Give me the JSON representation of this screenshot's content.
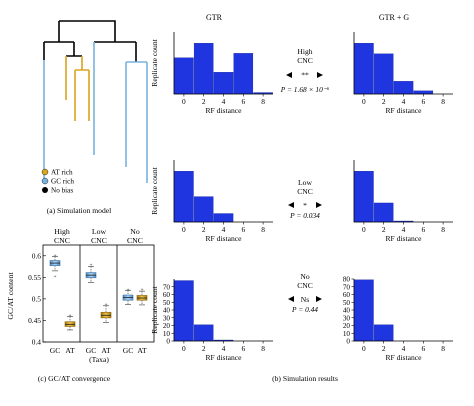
{
  "panels": {
    "a": {
      "caption": "(a) Simulation model",
      "legend": [
        {
          "label": "AT rich",
          "color": "#d9a520"
        },
        {
          "label": "GC rich",
          "color": "#79b3dd"
        },
        {
          "label": "No bias",
          "color": "#000000"
        }
      ]
    },
    "b": {
      "caption": "(b) Simulation results",
      "col_titles": [
        "GTR",
        "GTR + G"
      ],
      "ylabel": "Replicate count",
      "xlabel": "RF distance",
      "rows": [
        {
          "label_lines": [
            "High",
            "CNC"
          ],
          "sig": "**",
          "p_value": "P = 1.68 × 10⁻⁶"
        },
        {
          "label_lines": [
            "Low",
            "CNC"
          ],
          "sig": "*",
          "p_value": "P = 0.034"
        },
        {
          "label_lines": [
            "No",
            "CNC"
          ],
          "sig": "Ns",
          "p_value": "P = 0.44"
        }
      ]
    },
    "c": {
      "caption": "(c) GC/AT convergence",
      "ylabel": "GC/AT content",
      "xlabel": "(Taxa)",
      "group_labels": [
        [
          "High",
          "CNC"
        ],
        [
          "Low",
          "CNC"
        ],
        [
          "No",
          "CNC"
        ]
      ],
      "tick_labels": [
        "GC",
        "AT"
      ]
    }
  },
  "chart_data": [
    {
      "type": "bar",
      "panel": "b",
      "row": "High CNC",
      "model": "GTR",
      "categories": [
        0,
        2,
        4,
        6,
        8
      ],
      "values": [
        25,
        35,
        15,
        28,
        1
      ],
      "xlabel": "RF distance",
      "ylabel": "Replicate count",
      "color": "#1f35e0",
      "show_yticks": false,
      "grid": false
    },
    {
      "type": "bar",
      "panel": "b",
      "row": "High CNC",
      "model": "GTR + G",
      "categories": [
        0,
        2,
        4,
        6,
        8
      ],
      "values": [
        48,
        38,
        12,
        3,
        0
      ],
      "xlabel": "RF distance",
      "color": "#1f35e0",
      "show_yticks": false,
      "grid": false
    },
    {
      "type": "bar",
      "panel": "b",
      "row": "Low CNC",
      "model": "GTR",
      "categories": [
        0,
        2,
        4,
        6,
        8
      ],
      "values": [
        60,
        30,
        10,
        0,
        0
      ],
      "xlabel": "RF distance",
      "ylabel": "Replicate count",
      "color": "#1f35e0",
      "show_yticks": false,
      "grid": false
    },
    {
      "type": "bar",
      "panel": "b",
      "row": "Low CNC",
      "model": "GTR + G",
      "categories": [
        0,
        2,
        4,
        6,
        8
      ],
      "values": [
        72,
        27,
        1,
        0,
        0
      ],
      "xlabel": "RF distance",
      "color": "#1f35e0",
      "show_yticks": false,
      "grid": false
    },
    {
      "type": "bar",
      "panel": "b",
      "row": "No CNC",
      "model": "GTR",
      "categories": [
        0,
        2,
        4,
        6,
        8
      ],
      "values": [
        78,
        21,
        1,
        0,
        0
      ],
      "xlabel": "RF distance",
      "ylabel": "Replicate count",
      "color": "#1f35e0",
      "ylim": [
        0,
        80
      ],
      "yticks": [
        0,
        10,
        20,
        30,
        40,
        50,
        60,
        70
      ],
      "grid": false
    },
    {
      "type": "bar",
      "panel": "b",
      "row": "No CNC",
      "model": "GTR + G",
      "categories": [
        0,
        2,
        4,
        6,
        8
      ],
      "values": [
        79,
        21,
        0,
        0,
        0
      ],
      "xlabel": "RF distance",
      "color": "#1f35e0",
      "ylim": [
        0,
        80
      ],
      "yticks": [
        0,
        10,
        20,
        30,
        40,
        50,
        60,
        70,
        80
      ],
      "grid": false
    },
    {
      "type": "box",
      "panel": "c",
      "ylabel": "GC/AT content",
      "xlabel": "(Taxa)",
      "ylim": [
        0.4,
        0.625
      ],
      "yticks": [
        0.4,
        0.45,
        0.5,
        0.55,
        0.6
      ],
      "ytick_labels": [
        "0.4",
        "0.45",
        "0.5",
        "0.55",
        "0.6"
      ],
      "groups": [
        {
          "name": "High CNC",
          "boxes": [
            {
              "taxa": "GC",
              "color": "#79b3dd",
              "whisker_low": 0.565,
              "q1": 0.577,
              "median": 0.583,
              "q3": 0.589,
              "whisker_high": 0.598,
              "outliers": [
                0.553,
                0.602
              ]
            },
            {
              "taxa": "AT",
              "color": "#d9a520",
              "whisker_low": 0.428,
              "q1": 0.436,
              "median": 0.441,
              "q3": 0.447,
              "whisker_high": 0.459,
              "outliers": [
                0.463
              ]
            }
          ]
        },
        {
          "name": "Low CNC",
          "boxes": [
            {
              "taxa": "GC",
              "color": "#79b3dd",
              "whisker_low": 0.538,
              "q1": 0.549,
              "median": 0.555,
              "q3": 0.561,
              "whisker_high": 0.575,
              "outliers": [
                0.58
              ]
            },
            {
              "taxa": "AT",
              "color": "#d9a520",
              "whisker_low": 0.445,
              "q1": 0.456,
              "median": 0.462,
              "q3": 0.469,
              "whisker_high": 0.484,
              "outliers": [
                0.488
              ]
            }
          ]
        },
        {
          "name": "No CNC",
          "boxes": [
            {
              "taxa": "GC",
              "color": "#79b3dd",
              "whisker_low": 0.487,
              "q1": 0.497,
              "median": 0.503,
              "q3": 0.509,
              "whisker_high": 0.52,
              "outliers": [
                0.522
              ]
            },
            {
              "taxa": "AT",
              "color": "#d9a520",
              "whisker_low": 0.486,
              "q1": 0.497,
              "median": 0.502,
              "q3": 0.508,
              "whisker_high": 0.518,
              "outliers": [
                0.523
              ]
            }
          ]
        }
      ]
    }
  ]
}
